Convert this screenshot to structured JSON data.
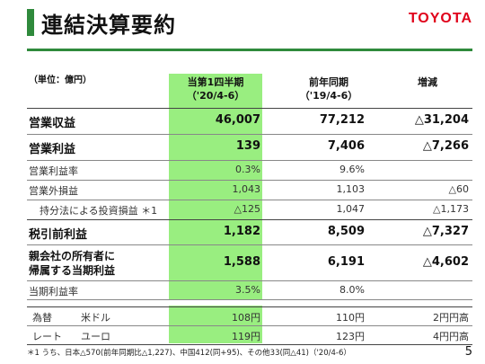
{
  "header": {
    "title": "連結決算要約",
    "logo": "TOYOTA"
  },
  "unit_label": "（単位：億円）",
  "columns": {
    "c1": {
      "line1": "当第1四半期",
      "line2": "（'20/4-6）"
    },
    "c2": {
      "line1": "前年同期",
      "line2": "（'19/4-6）"
    },
    "c3": {
      "line1": "増減",
      "line2": ""
    }
  },
  "rows": [
    {
      "label": "営業収益",
      "c1": "46,007",
      "c2": "77,212",
      "c3": "△31,204"
    },
    {
      "label": "営業利益",
      "c1": "139",
      "c2": "7,406",
      "c3": "△7,266"
    },
    {
      "label": "営業利益率",
      "c1": "0.3%",
      "c2": "9.6%",
      "c3": ""
    },
    {
      "label": "営業外損益",
      "c1": "1,043",
      "c2": "1,103",
      "c3": "△60"
    },
    {
      "label": "持分法による投資損益 ＊1",
      "c1": "△125",
      "c2": "1,047",
      "c3": "△1,173"
    },
    {
      "label": "税引前利益",
      "c1": "1,182",
      "c2": "8,509",
      "c3": "△7,327"
    },
    {
      "label": "親会社の所有者に",
      "label2": "帰属する当期利益",
      "c1": "1,588",
      "c2": "6,191",
      "c3": "△4,602"
    },
    {
      "label": "当期利益率",
      "c1": "3.5%",
      "c2": "8.0%",
      "c3": ""
    }
  ],
  "fx": {
    "head1": "為替",
    "head2": "レート",
    "usd": {
      "label": "米ドル",
      "c1": "108円",
      "c2": "110円",
      "c3": "2円円高"
    },
    "eur": {
      "label": "ユーロ",
      "c1": "119円",
      "c2": "123円",
      "c3": "4円円高"
    }
  },
  "footnote": "＊1 うち、日本△570(前年同期比△1,227)、中国412(同+95)、その他33(同△41)（'20/4-6）",
  "page_number": "5"
}
